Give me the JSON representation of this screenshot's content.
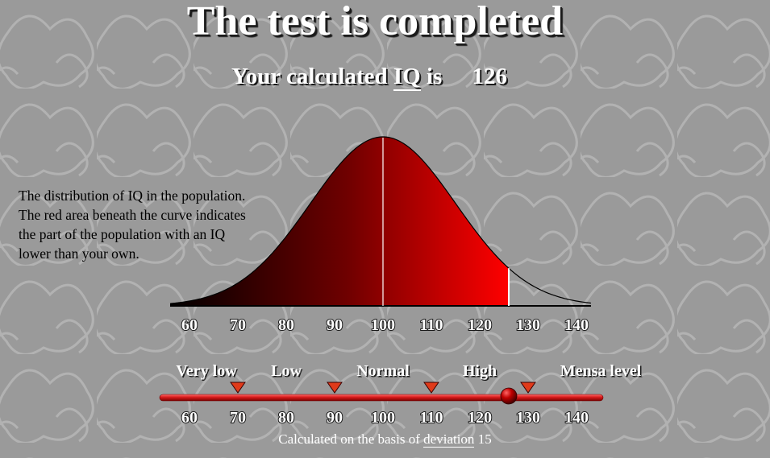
{
  "title": "The test is completed",
  "result": {
    "prefix": "Your calculated",
    "iq_link": "IQ",
    "is_text": "is",
    "value": "126"
  },
  "explanation": {
    "lines": [
      "The distribution of IQ in the population.",
      "The red area beneath the curve indicates",
      "the part of the population with an IQ",
      "lower than your own."
    ]
  },
  "bands": [
    "Very low",
    "Low",
    "Normal",
    "High",
    "Mensa level"
  ],
  "footnote": {
    "prefix": "Calculated on the basis of",
    "link": "deviation",
    "value": "15"
  },
  "chart_data": {
    "type": "area",
    "distribution": "normal",
    "mean": 100,
    "sd": 15,
    "user_score": 126,
    "xlim": [
      56,
      143
    ],
    "x_ticks": [
      60,
      70,
      80,
      90,
      100,
      110,
      120,
      130,
      140
    ],
    "band_boundaries": [
      70,
      90,
      110,
      130
    ],
    "colors": {
      "shade_start": "#000000",
      "shade_mid": "#6e0000",
      "shade_end": "#ff0000",
      "slider": "#cc1111"
    }
  }
}
